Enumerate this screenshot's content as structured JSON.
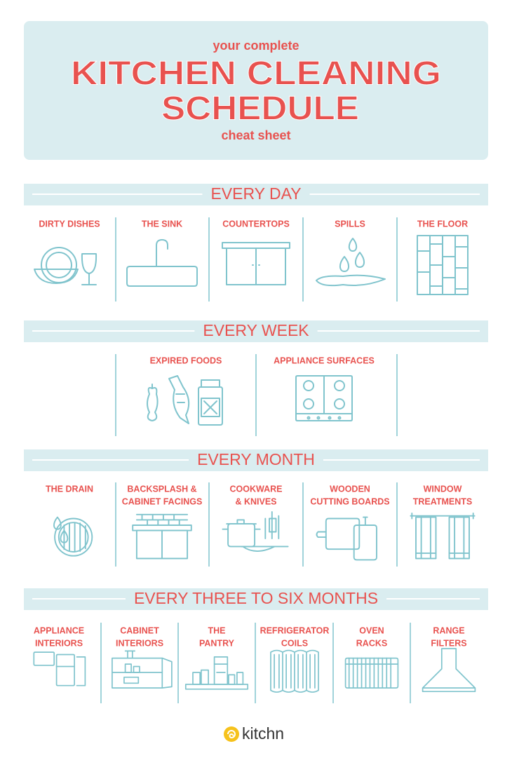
{
  "header": {
    "kicker": "your complete",
    "title": [
      "KITCHEN CLEANING",
      "SCHEDULE"
    ],
    "caption": "cheat sheet"
  },
  "sections": [
    {
      "heading": "EVERY DAY",
      "items": [
        {
          "label": [
            "DIRTY DISHES"
          ]
        },
        {
          "label": [
            "THE SINK"
          ]
        },
        {
          "label": [
            "COUNTERTOPS"
          ]
        },
        {
          "label": [
            "SPILLS"
          ]
        },
        {
          "label": [
            "THE FLOOR"
          ]
        }
      ]
    },
    {
      "heading": "EVERY WEEK",
      "items": [
        {
          "label": [
            "EXPIRED FOODS"
          ]
        },
        {
          "label": [
            "APPLIANCE SURFACES"
          ]
        }
      ]
    },
    {
      "heading": "EVERY MONTH",
      "items": [
        {
          "label": [
            "THE DRAIN"
          ]
        },
        {
          "label": [
            "BACKSPLASH &",
            "CABINET FACINGS"
          ]
        },
        {
          "label": [
            "COOKWARE",
            "& KNIVES"
          ]
        },
        {
          "label": [
            "WOODEN",
            "CUTTING BOARDS"
          ]
        },
        {
          "label": [
            "WINDOW",
            "TREATMENTS"
          ]
        }
      ]
    },
    {
      "heading": "EVERY THREE TO SIX MONTHS",
      "items": [
        {
          "label": [
            "APPLIANCE",
            "INTERIORS"
          ]
        },
        {
          "label": [
            "CABINET",
            "INTERIORS"
          ]
        },
        {
          "label": [
            "THE",
            "PANTRY"
          ]
        },
        {
          "label": [
            "REFRIGERATOR",
            "COILS"
          ]
        },
        {
          "label": [
            "OVEN",
            "RACKS"
          ]
        },
        {
          "label": [
            "RANGE",
            "FILTERS"
          ]
        }
      ]
    }
  ],
  "footer": {
    "brand": "kitchn"
  }
}
